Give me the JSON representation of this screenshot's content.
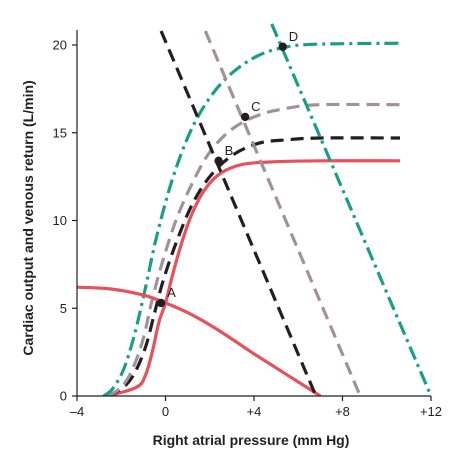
{
  "chart_data": {
    "type": "line",
    "xlabel": "Right atrial pressure (mm Hg)",
    "ylabel": "Cardiac output and venous return (L/min)",
    "xlim": [
      -4,
      12
    ],
    "ylim": [
      0,
      21
    ],
    "x_ticks": [
      -4,
      0,
      4,
      8,
      12
    ],
    "x_tick_labels": [
      "–4",
      "0",
      "+4",
      "+8",
      "+12"
    ],
    "y_ticks": [
      0,
      5,
      10,
      15,
      20
    ],
    "y_tick_labels": [
      "0",
      "5",
      "10",
      "15",
      "20"
    ],
    "grid": false,
    "legend": "none",
    "series": [
      {
        "kind": "cardiac-output",
        "color": "#e8505b",
        "dash": "solid",
        "points": [
          [
            -2.6,
            0
          ],
          [
            -1.3,
            0.5
          ],
          [
            -0.9,
            1.2
          ],
          [
            -0.6,
            2.5
          ],
          [
            -0.3,
            4.2
          ],
          [
            0,
            5.3
          ],
          [
            0.3,
            6.8
          ],
          [
            0.7,
            8.6
          ],
          [
            1.2,
            10.4
          ],
          [
            1.8,
            11.8
          ],
          [
            2.5,
            12.7
          ],
          [
            3.5,
            13.2
          ],
          [
            5,
            13.35
          ],
          [
            7,
            13.4
          ],
          [
            10.6,
            13.4
          ]
        ]
      },
      {
        "kind": "cardiac-output",
        "color": "#231f20",
        "dash": "dashed",
        "points": [
          [
            -2.6,
            0
          ],
          [
            -1.9,
            0.5
          ],
          [
            -1.4,
            1.3
          ],
          [
            -0.9,
            2.8
          ],
          [
            -0.5,
            4.7
          ],
          [
            -0.1,
            6.6
          ],
          [
            0.5,
            8.8
          ],
          [
            1.2,
            10.9
          ],
          [
            2,
            12.5
          ],
          [
            3,
            13.7
          ],
          [
            4.2,
            14.4
          ],
          [
            5.5,
            14.6
          ],
          [
            7,
            14.7
          ],
          [
            10.6,
            14.7
          ]
        ]
      },
      {
        "kind": "cardiac-output",
        "color": "#a3919a",
        "dash": "dashed",
        "points": [
          [
            -2.6,
            0
          ],
          [
            -2,
            0.5
          ],
          [
            -1.5,
            1.5
          ],
          [
            -1,
            3.3
          ],
          [
            -0.6,
            5.5
          ],
          [
            -0.1,
            7.8
          ],
          [
            0.5,
            10.1
          ],
          [
            1.2,
            12.1
          ],
          [
            2,
            13.9
          ],
          [
            3,
            15.2
          ],
          [
            4.2,
            16.0
          ],
          [
            5.5,
            16.4
          ],
          [
            7,
            16.6
          ],
          [
            10.6,
            16.6
          ]
        ]
      },
      {
        "kind": "cardiac-output",
        "color": "#1a9e8a",
        "dash": "dashdot",
        "points": [
          [
            -2.8,
            0
          ],
          [
            -2.4,
            0.4
          ],
          [
            -1.9,
            1.5
          ],
          [
            -1.4,
            3.5
          ],
          [
            -0.9,
            6.2
          ],
          [
            -0.4,
            9.1
          ],
          [
            0.3,
            12.3
          ],
          [
            1.1,
            15.0
          ],
          [
            2,
            17.0
          ],
          [
            3,
            18.4
          ],
          [
            4.2,
            19.4
          ],
          [
            5.5,
            19.9
          ],
          [
            7,
            20.05
          ],
          [
            10.6,
            20.1
          ]
        ]
      },
      {
        "kind": "venous-return",
        "color": "#e8505b",
        "dash": "solid",
        "points": [
          [
            -4,
            6.2
          ],
          [
            -2.5,
            6.1
          ],
          [
            -1,
            5.75
          ],
          [
            0,
            5.3
          ],
          [
            1,
            4.75
          ],
          [
            2,
            4.05
          ],
          [
            3,
            3.25
          ],
          [
            4,
            2.4
          ],
          [
            5,
            1.6
          ],
          [
            6,
            0.8
          ],
          [
            7,
            0
          ]
        ]
      },
      {
        "kind": "venous-return",
        "color": "#231f20",
        "dash": "dashed",
        "points": [
          [
            -0.2,
            20.8
          ],
          [
            6.8,
            0
          ]
        ]
      },
      {
        "kind": "venous-return",
        "color": "#a3919a",
        "dash": "dashed",
        "points": [
          [
            1.8,
            20.8
          ],
          [
            8.8,
            0
          ]
        ]
      },
      {
        "kind": "venous-return",
        "color": "#1a9e8a",
        "dash": "dashdot",
        "points": [
          [
            4.8,
            21.2
          ],
          [
            12,
            0
          ]
        ]
      }
    ],
    "points": [
      {
        "label": "A",
        "x": -0.2,
        "y": 5.3
      },
      {
        "label": "B",
        "x": 2.4,
        "y": 13.4
      },
      {
        "label": "C",
        "x": 3.6,
        "y": 15.9
      },
      {
        "label": "D",
        "x": 5.3,
        "y": 19.9
      }
    ]
  }
}
